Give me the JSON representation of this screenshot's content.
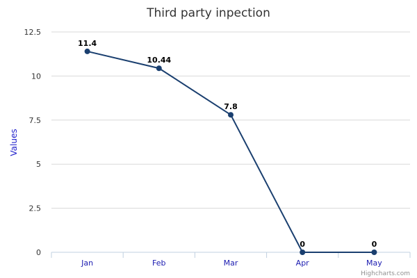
{
  "chart_data": {
    "type": "line",
    "title": "Third party inpection",
    "ylabel": "Values",
    "xlabel": "",
    "categories": [
      "Jan",
      "Feb",
      "Mar",
      "Apr",
      "May"
    ],
    "values": [
      11.4,
      10.44,
      7.8,
      0,
      0
    ],
    "data_labels": [
      "11.4",
      "10.44",
      "7.8",
      "0",
      "0"
    ],
    "yticks": [
      "0",
      "2.5",
      "5",
      "7.5",
      "10",
      "12.5"
    ],
    "ylim": [
      0,
      12.5
    ],
    "grid": true,
    "legend": "none",
    "line_color": "#1a3f6f",
    "credits": "Highcharts.com"
  }
}
